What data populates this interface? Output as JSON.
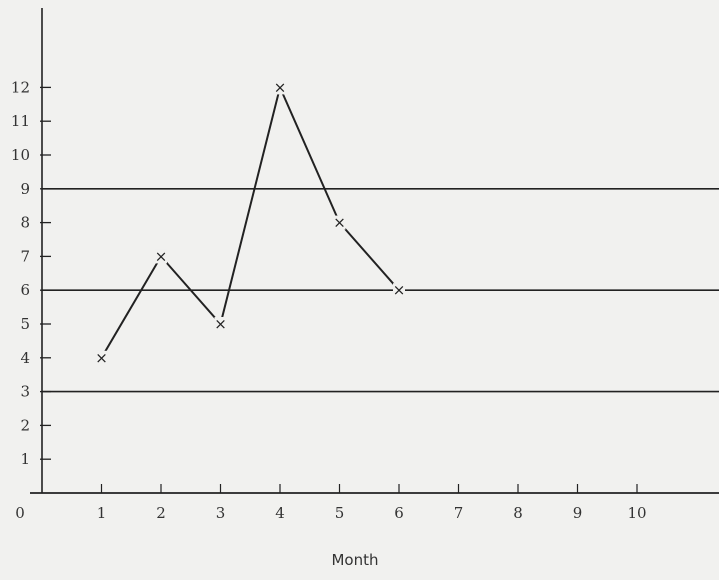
{
  "chart_data": {
    "type": "line",
    "xlabel": "Month",
    "ylabel": "",
    "x_ticks": [
      "0",
      "1",
      "2",
      "3",
      "4",
      "5",
      "6",
      "7",
      "8",
      "9",
      "10"
    ],
    "y_ticks": [
      "1",
      "2",
      "3",
      "4",
      "5",
      "6",
      "7",
      "8",
      "9",
      "10",
      "11",
      "12"
    ],
    "xlim": [
      0,
      10
    ],
    "ylim": [
      0,
      12
    ],
    "control_lines": [
      3,
      6,
      9
    ],
    "series": [
      {
        "x": [
          1,
          2,
          3,
          4,
          5,
          6
        ],
        "values": [
          4,
          7,
          5,
          12,
          8,
          6
        ],
        "marker": "x"
      }
    ],
    "colors": {
      "background": "#f1f1ef",
      "ink": "#222222"
    }
  }
}
